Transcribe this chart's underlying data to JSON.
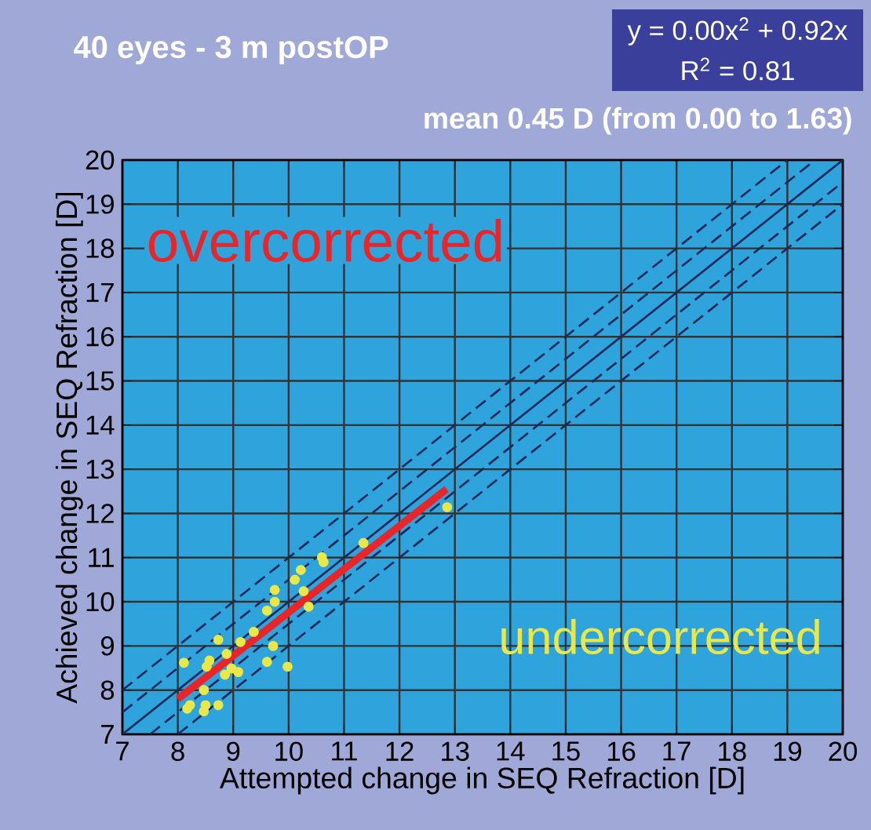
{
  "chart_data": {
    "type": "scatter",
    "title": "40 eyes - 3 m postOP",
    "xlabel": "Attempted change in SEQ Refraction [D]",
    "ylabel": "Achieved change in SEQ Refraction [D]",
    "annotations": [
      "y = 0.00x$^{2}$ + 0.92x",
      "R$^{2}$ = 0.81",
      "mean 0.45 D (from 0.00 to 1.63)",
      "overcorrected",
      "undercorrected"
    ],
    "xlim": [
      7,
      20
    ],
    "ylim": [
      7,
      20
    ],
    "xticks": [
      7,
      8,
      9,
      10,
      11,
      12,
      13,
      14,
      15,
      16,
      17,
      18,
      19,
      20
    ],
    "yticks": [
      7,
      8,
      9,
      10,
      11,
      12,
      13,
      14,
      15,
      16,
      17,
      18,
      19,
      20
    ],
    "grid": true,
    "series": [
      {
        "type": "line",
        "color": "#1a2a5a",
        "line_style": "dashed",
        "x": [
          7,
          19
        ],
        "values": [
          8,
          20
        ]
      },
      {
        "type": "line",
        "color": "#1a2a5a",
        "line_style": "dashed",
        "x": [
          7,
          19.5
        ],
        "values": [
          7.5,
          20
        ]
      },
      {
        "type": "line",
        "color": "#1a2a5a",
        "line_style": "solid",
        "x": [
          7,
          20
        ],
        "values": [
          7,
          20
        ]
      },
      {
        "type": "line",
        "color": "#1a2a5a",
        "line_style": "dashed",
        "x": [
          7.5,
          20
        ],
        "values": [
          7,
          19.5
        ]
      },
      {
        "type": "line",
        "color": "#1a2a5a",
        "line_style": "dashed",
        "x": [
          8,
          20
        ],
        "values": [
          7,
          19
        ]
      },
      {
        "type": "line",
        "color": "#e8262a",
        "line_style": "solid",
        "x": [
          8,
          12.85
        ],
        "values": [
          7.8,
          12.55
        ]
      },
      {
        "color": "#e8e84a",
        "marker": "circle",
        "x": [
          8.11,
          8.17,
          8.22,
          8.47,
          8.5,
          8.47,
          8.73,
          8.73,
          8.57,
          8.52,
          8.88,
          8.85,
          8.97,
          9.09,
          9.13,
          9.37,
          9.61,
          9.72,
          9.75,
          9.75,
          9.61,
          9.98,
          10.11,
          10.22,
          10.27,
          10.36,
          12.86,
          11.35,
          10.6,
          10.63
        ],
        "values": [
          8.62,
          7.58,
          7.66,
          8.0,
          7.66,
          7.52,
          7.66,
          9.14,
          8.67,
          8.53,
          8.82,
          8.35,
          8.49,
          8.41,
          9.09,
          9.32,
          8.64,
          9.0,
          10.0,
          10.27,
          9.8,
          8.53,
          10.5,
          10.72,
          10.24,
          9.89,
          12.14,
          11.33,
          11.01,
          10.9
        ]
      }
    ]
  }
}
